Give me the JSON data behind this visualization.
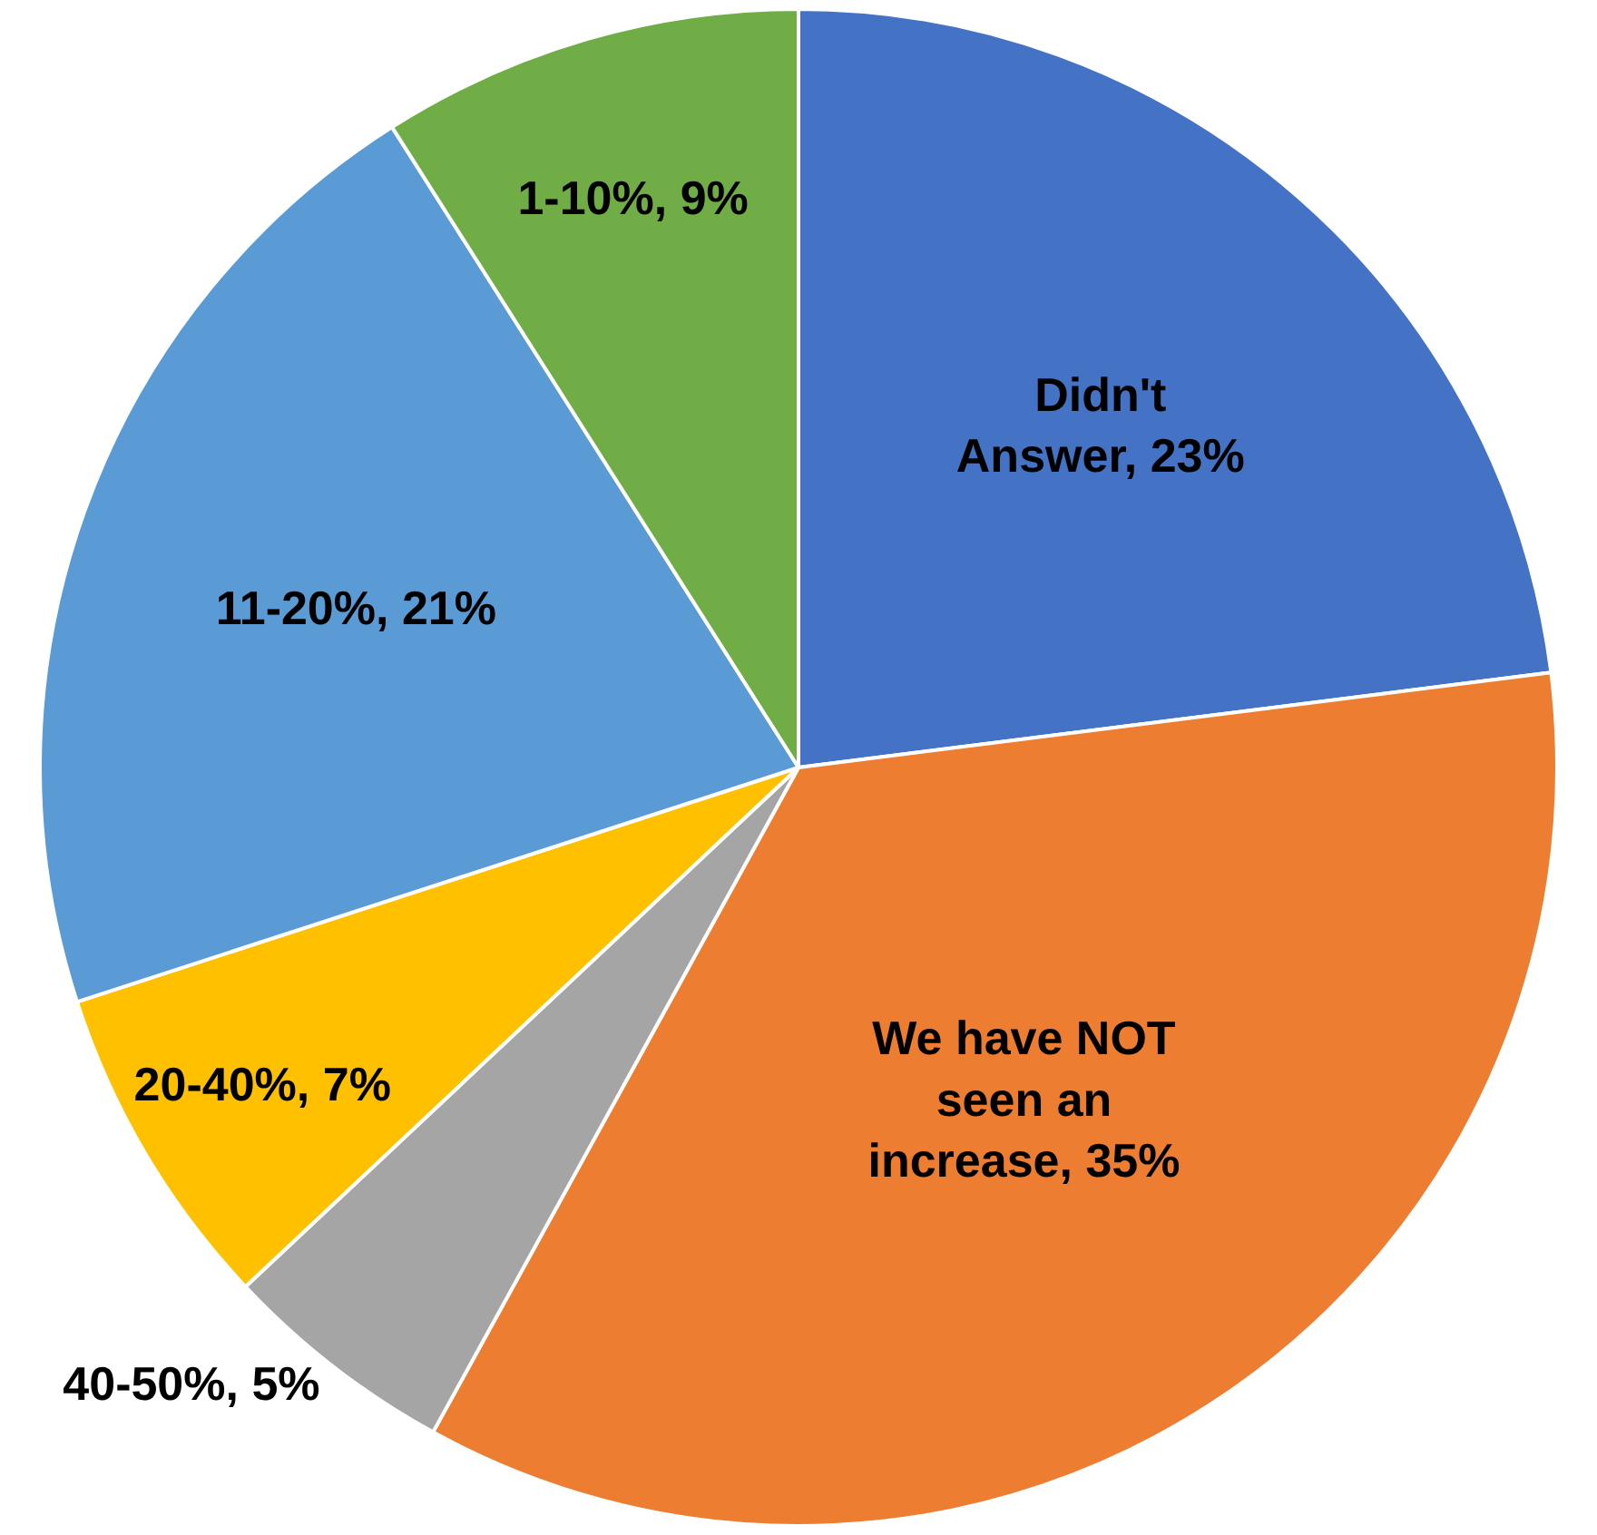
{
  "chart_data": {
    "type": "pie",
    "categories": [
      "Didn't Answer",
      "We have NOT seen an increase",
      "40-50%",
      "20-40%",
      "11-20%",
      "1-10%"
    ],
    "values": [
      23,
      35,
      5,
      7,
      21,
      9
    ],
    "value_labels": [
      "23%",
      "35%",
      "5%",
      "7%",
      "21%",
      "9%"
    ],
    "colors": [
      "#4472c4",
      "#ed7d31",
      "#a5a5a5",
      "#ffc000",
      "#5b9bd5",
      "#70ad47"
    ],
    "legend": false
  }
}
